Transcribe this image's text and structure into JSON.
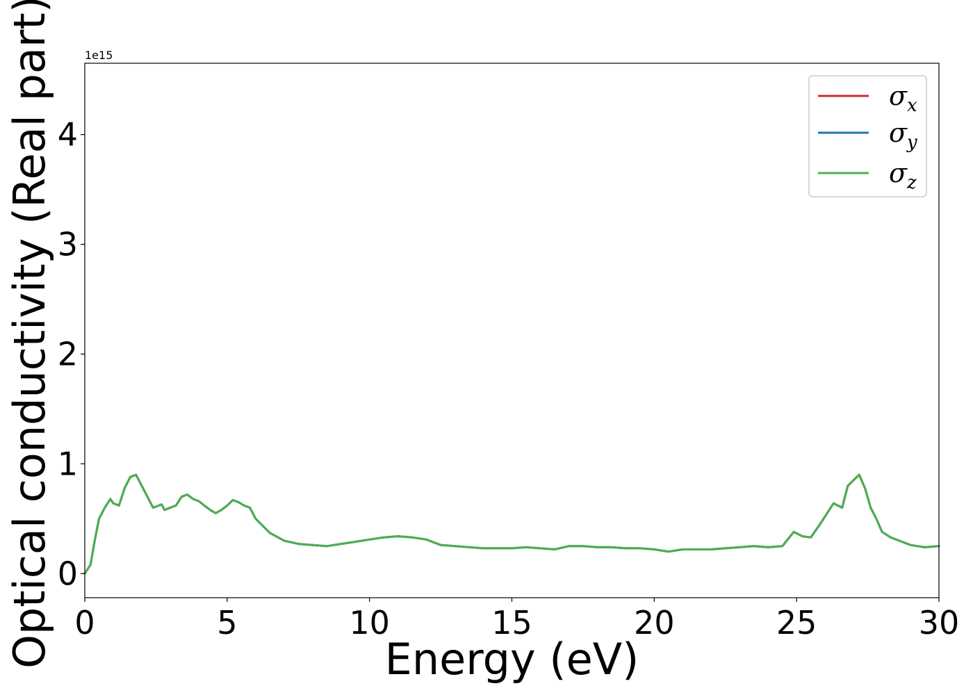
{
  "chart_data": {
    "type": "line",
    "title": "",
    "xlabel": "Energy (eV)",
    "ylabel": "Optical conductivity (Real part)",
    "y_offset_label": "1e15",
    "xlim": [
      0,
      30
    ],
    "ylim": [
      -0.22,
      4.65
    ],
    "x_ticks": [
      0,
      5,
      10,
      15,
      20,
      25,
      30
    ],
    "y_ticks": [
      0,
      1,
      2,
      3,
      4
    ],
    "grid": false,
    "legend_position": "top-right",
    "series": [
      {
        "name_symbol": "σ",
        "name_sub": "x",
        "color": "#d62728"
      },
      {
        "name_symbol": "σ",
        "name_sub": "y",
        "color": "#1f77b4"
      },
      {
        "name_symbol": "σ",
        "name_sub": "z",
        "color": "#4caf50"
      }
    ],
    "x": [
      0,
      0.2,
      0.35,
      0.5,
      0.7,
      0.9,
      1.0,
      1.2,
      1.4,
      1.6,
      1.8,
      2.0,
      2.2,
      2.4,
      2.6,
      2.7,
      2.8,
      3.0,
      3.2,
      3.4,
      3.6,
      3.8,
      4.0,
      4.2,
      4.4,
      4.6,
      4.8,
      5.0,
      5.2,
      5.4,
      5.6,
      5.8,
      6.0,
      6.5,
      7.0,
      7.5,
      8.0,
      8.5,
      9.0,
      9.5,
      10.0,
      10.5,
      11.0,
      11.5,
      12.0,
      12.5,
      13.0,
      13.5,
      14.0,
      14.5,
      15.0,
      15.5,
      16.0,
      16.5,
      17.0,
      17.5,
      18.0,
      18.5,
      19.0,
      19.5,
      20.0,
      20.5,
      21.0,
      21.5,
      22.0,
      22.5,
      23.0,
      23.5,
      24.0,
      24.5,
      24.9,
      25.2,
      25.5,
      25.8,
      26.0,
      26.3,
      26.6,
      26.8,
      27.0,
      27.2,
      27.4,
      27.6,
      27.8,
      28.0,
      28.3,
      28.6,
      29.0,
      29.5,
      30.0
    ],
    "y": [
      0.0,
      0.08,
      0.3,
      0.5,
      0.6,
      0.68,
      0.64,
      0.62,
      0.78,
      0.88,
      0.9,
      0.8,
      0.7,
      0.6,
      0.62,
      0.63,
      0.58,
      0.6,
      0.62,
      0.7,
      0.72,
      0.68,
      0.66,
      0.62,
      0.58,
      0.55,
      0.58,
      0.62,
      0.67,
      0.65,
      0.62,
      0.6,
      0.5,
      0.37,
      0.3,
      0.27,
      0.26,
      0.25,
      0.27,
      0.29,
      0.31,
      0.33,
      0.34,
      0.33,
      0.31,
      0.26,
      0.25,
      0.24,
      0.23,
      0.23,
      0.23,
      0.24,
      0.23,
      0.22,
      0.25,
      0.25,
      0.24,
      0.24,
      0.23,
      0.23,
      0.22,
      0.2,
      0.22,
      0.22,
      0.22,
      0.23,
      0.24,
      0.25,
      0.24,
      0.25,
      0.38,
      0.34,
      0.33,
      0.44,
      0.52,
      0.64,
      0.6,
      0.8,
      0.85,
      0.9,
      0.78,
      0.6,
      0.5,
      0.38,
      0.33,
      0.3,
      0.26,
      0.24,
      0.25
    ]
  }
}
